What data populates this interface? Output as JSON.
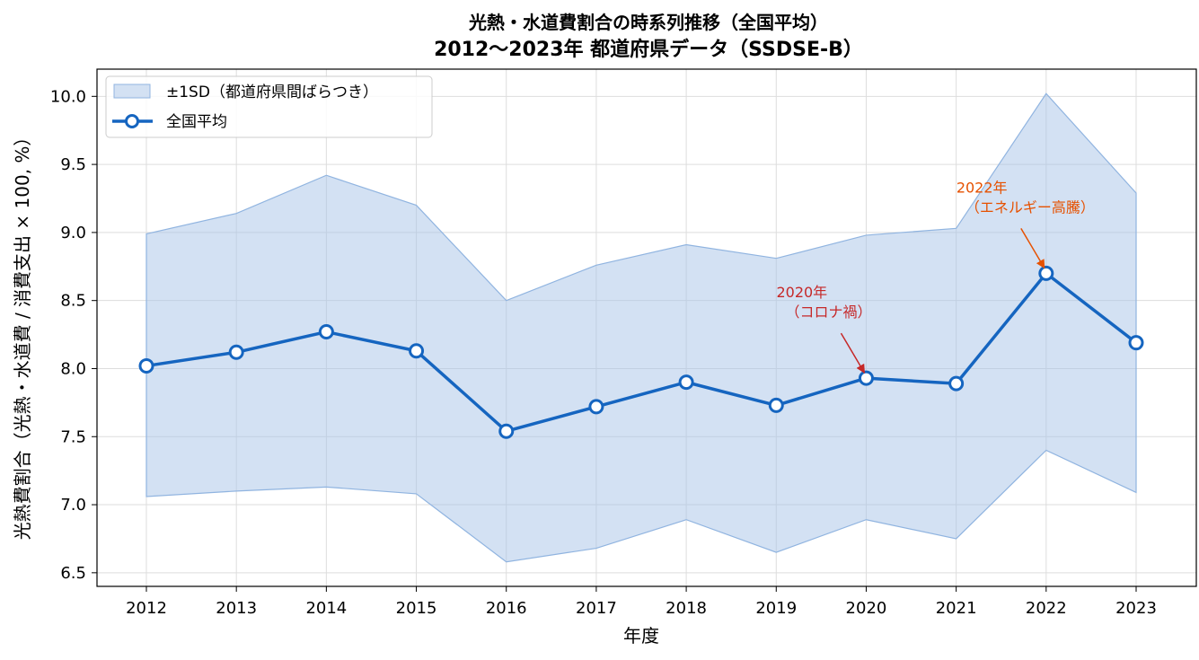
{
  "chart_data": {
    "type": "line",
    "title_line1": "光熱・水道費割合の時系列推移（全国平均）",
    "title_line2": "2012〜2023年 都道府県データ（SSDSE-B）",
    "xlabel": "年度",
    "ylabel": "光熱費割合（光熱・水道費 / 消費支出 × 100, %）",
    "x": [
      "2012",
      "2013",
      "2014",
      "2015",
      "2016",
      "2017",
      "2018",
      "2019",
      "2020",
      "2021",
      "2022",
      "2023"
    ],
    "ylim": [
      6.4,
      10.2
    ],
    "yticks": [
      "6.5",
      "7.0",
      "7.5",
      "8.0",
      "8.5",
      "9.0",
      "9.5",
      "10.0"
    ],
    "grid": true,
    "legend_position": "top-left",
    "series": [
      {
        "name": "全国平均",
        "values": [
          8.02,
          8.12,
          8.27,
          8.13,
          7.54,
          7.72,
          7.9,
          7.73,
          7.93,
          7.89,
          8.7,
          8.19
        ],
        "color": "#1565c0"
      }
    ],
    "band": {
      "name": "±1SD（都道府県間ばらつき）",
      "upper": [
        8.99,
        9.14,
        9.42,
        9.2,
        8.5,
        8.76,
        8.91,
        8.81,
        8.98,
        9.03,
        10.02,
        9.29
      ],
      "lower": [
        7.06,
        7.1,
        7.13,
        7.08,
        6.58,
        6.68,
        6.89,
        6.65,
        6.89,
        6.75,
        7.4,
        7.09
      ],
      "color": "#a8c4e8"
    },
    "annotations": [
      {
        "line1": "2020年",
        "line2": "（コロナ禍）",
        "x": "2020",
        "y": 7.93,
        "color": "#c62828"
      },
      {
        "line1": "2022年",
        "line2": "（エネルギー高騰）",
        "x": "2022",
        "y": 8.7,
        "color": "#e65100"
      }
    ]
  }
}
